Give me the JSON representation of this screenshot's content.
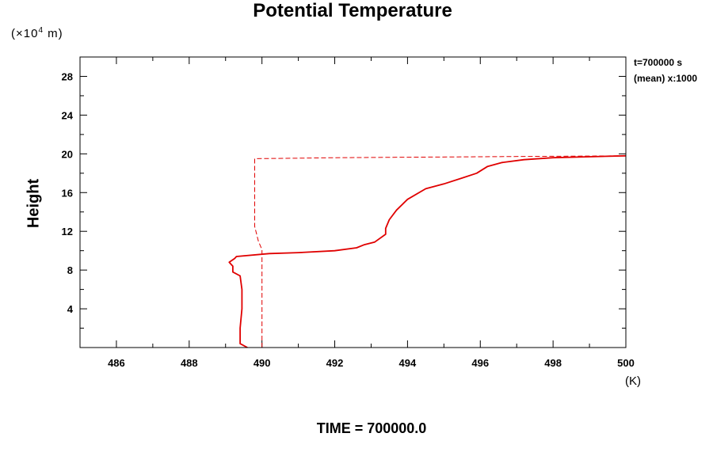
{
  "chart_data": {
    "type": "line",
    "title": "Potential Temperature",
    "ylabel": "Height",
    "yunit": "(×10",
    "yunit_exp": "4",
    "yunit_tail": " m)",
    "xunit": "(K)",
    "annotation_time": "t=700000 s",
    "annotation_mean": "(mean) x:1000",
    "footer": "TIME = 700000.0",
    "xlim": [
      485,
      500
    ],
    "ylim": [
      0,
      30
    ],
    "xticks": [
      486,
      488,
      490,
      492,
      494,
      496,
      498,
      500
    ],
    "yticks": [
      4,
      8,
      12,
      16,
      20,
      24,
      28
    ],
    "series": [
      {
        "style": "solid",
        "color": "#e00000",
        "points": [
          [
            489.6,
            0.0
          ],
          [
            489.4,
            0.4
          ],
          [
            489.4,
            2.0
          ],
          [
            489.45,
            4.0
          ],
          [
            489.45,
            6.0
          ],
          [
            489.4,
            7.4
          ],
          [
            489.2,
            7.8
          ],
          [
            489.2,
            8.4
          ],
          [
            489.1,
            8.8
          ],
          [
            489.25,
            9.2
          ],
          [
            489.3,
            9.4
          ],
          [
            490.2,
            9.7
          ],
          [
            491.0,
            9.8
          ],
          [
            492.0,
            10.0
          ],
          [
            492.6,
            10.3
          ],
          [
            492.8,
            10.6
          ],
          [
            493.1,
            10.9
          ],
          [
            493.4,
            11.7
          ],
          [
            493.4,
            12.3
          ],
          [
            493.5,
            13.2
          ],
          [
            493.7,
            14.2
          ],
          [
            494.0,
            15.3
          ],
          [
            494.5,
            16.4
          ],
          [
            495.0,
            16.9
          ],
          [
            495.5,
            17.5
          ],
          [
            495.9,
            18.0
          ],
          [
            496.2,
            18.7
          ],
          [
            496.6,
            19.1
          ],
          [
            497.2,
            19.4
          ],
          [
            498.0,
            19.6
          ],
          [
            499.0,
            19.7
          ],
          [
            500.0,
            19.8
          ]
        ]
      },
      {
        "style": "dashed",
        "color": "#e00000",
        "points": [
          [
            490.0,
            0.0
          ],
          [
            490.0,
            10.1
          ],
          [
            489.9,
            11.0
          ],
          [
            489.8,
            12.5
          ],
          [
            489.8,
            19.5
          ],
          [
            491.0,
            19.55
          ],
          [
            492.0,
            19.6
          ],
          [
            494.0,
            19.65
          ],
          [
            496.0,
            19.7
          ],
          [
            498.0,
            19.75
          ],
          [
            500.0,
            19.8
          ]
        ]
      }
    ]
  }
}
